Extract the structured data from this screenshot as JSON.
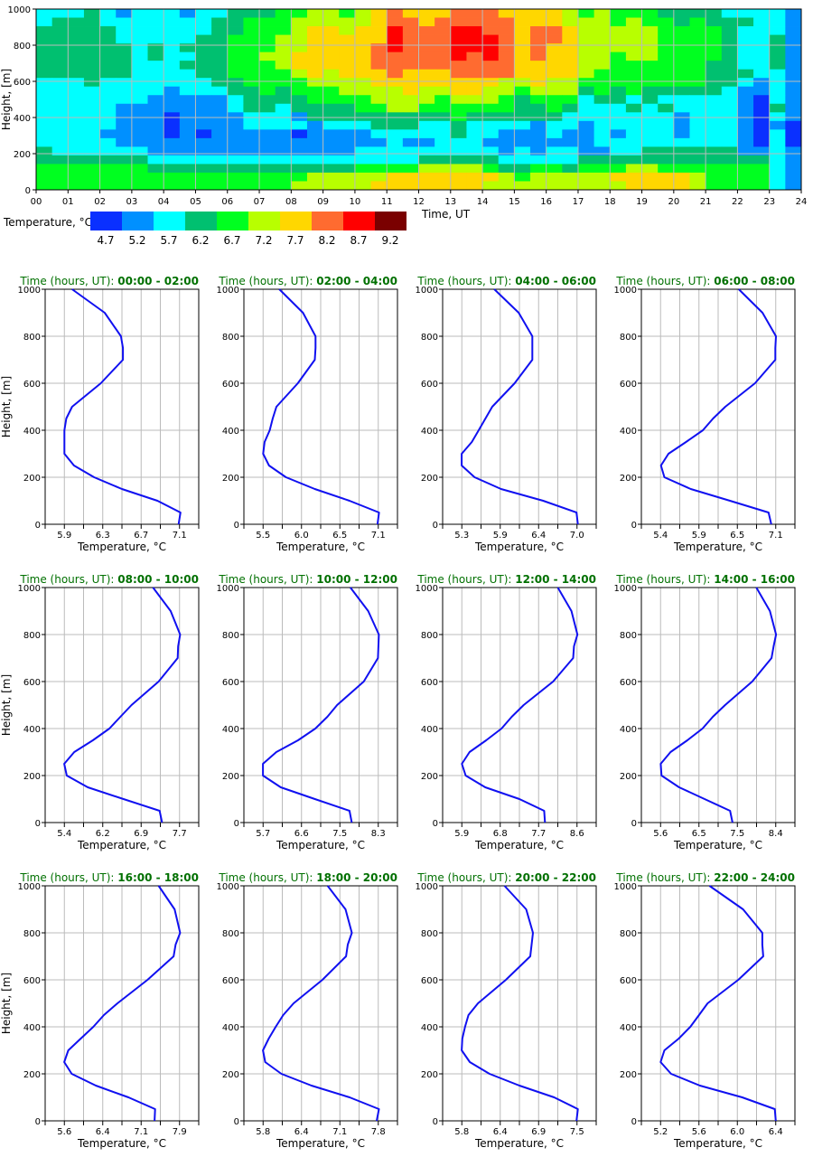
{
  "chart_data": [
    {
      "type": "heatmap",
      "xlabel": "Time, UT",
      "ylabel": "Height, [m]",
      "xlim": [
        0,
        24
      ],
      "ylim": [
        0,
        1000
      ],
      "yticks": [
        "0",
        "200",
        "400",
        "600",
        "800",
        "1000"
      ],
      "xtick_labels": [
        "00",
        "01",
        "02",
        "03",
        "04",
        "05",
        "06",
        "07",
        "08",
        "09",
        "10",
        "11",
        "12",
        "13",
        "14",
        "15",
        "16",
        "17",
        "18",
        "19",
        "20",
        "21",
        "22",
        "23",
        "24"
      ],
      "grid": true,
      "legend": {
        "title": "Temperature, °C",
        "levels": [
          "4.7",
          "5.2",
          "5.7",
          "6.2",
          "6.7",
          "7.2",
          "7.7",
          "8.2",
          "8.7",
          "9.2"
        ],
        "colors": [
          "#0a30ff",
          "#0090ff",
          "#00ffff",
          "#00c070",
          "#00ff20",
          "#b8ff00",
          "#ffd700",
          "#ff6b30",
          "#ff0000",
          "#7a0000"
        ],
        "placement": "bottom-left"
      },
      "rows_top_to_bottom_level_index_per_half_hour": [
        "222321222122333445545676667776666545444333322221",
        "233322222223344455555677677777666555454434333221",
        "333332222223344456656687778877677655555444432221",
        "333332222233444556666687778887677655555444432231",
        "333333232333444556666787778887676655555444432231",
        "333333232233445566666777778787676655455444432231",
        "333333222333444566666777777777666655444444332231",
        "333333222233444456566676667777666654444444333221",
        "222322222223344445555666666665565544444444332121",
        "222222221222334344455556556655455534343333321121",
        "222222211111233334444555545554344423323222221021",
        "222221111111233233334455444444334322232322221031",
        "222221110111122213333333334333333222222212221021",
        "222221110111122221222333223222212212222212221010",
        "222211110101111101111222223221112112122212221020",
        "222221111111111111111121122211111112222222221020",
        "322222211111111111112222222221212211223333331121",
        "333333322222222222222222333332222233333333333321",
        "444444433333333333334444555543344344455444444421",
        "444444444444444445555566666665455555666665444421",
        "444444444444444455555666666655555555566665444421"
      ]
    },
    {
      "type": "line",
      "title_prefix": "Time (hours, UT): ",
      "xlabel": "Temperature, °C",
      "ylabel": "Height, [m]",
      "ylim": [
        0,
        1000
      ],
      "yticks": [
        "0",
        "200",
        "400",
        "600",
        "800",
        "1000"
      ],
      "heights": [
        0,
        50,
        100,
        150,
        200,
        250,
        300,
        350,
        400,
        450,
        500,
        600,
        700,
        750,
        800,
        900,
        1000
      ],
      "line_color": "#1010f0",
      "panels": [
        {
          "range": "00:00 - 02:00",
          "xlim": [
            5.7,
            7.3
          ],
          "xtick_labels": [
            "5.9",
            "6.3",
            "6.7",
            "7.1"
          ],
          "temps": [
            7.09,
            7.11,
            6.87,
            6.5,
            6.21,
            6.0,
            5.9,
            5.9,
            5.9,
            5.92,
            5.98,
            6.28,
            6.51,
            6.51,
            6.49,
            6.32,
            5.98
          ]
        },
        {
          "range": "02:00 - 04:00",
          "xlim": [
            5.24,
            7.32
          ],
          "xtick_labels": [
            "5.5",
            "6.0",
            "6.5",
            "7.1"
          ],
          "temps": [
            7.05,
            7.07,
            6.67,
            6.2,
            5.81,
            5.58,
            5.5,
            5.52,
            5.59,
            5.63,
            5.68,
            5.97,
            6.2,
            6.21,
            6.21,
            6.04,
            5.72
          ]
        },
        {
          "range": "04:00 - 06:00",
          "xlim": [
            5.02,
            7.28
          ],
          "xtick_labels": [
            "5.3",
            "5.9",
            "6.4",
            "7.0"
          ],
          "temps": [
            7.01,
            6.99,
            6.5,
            5.88,
            5.49,
            5.3,
            5.3,
            5.45,
            5.55,
            5.65,
            5.75,
            6.08,
            6.34,
            6.34,
            6.34,
            6.14,
            5.78
          ]
        },
        {
          "range": "06:00 - 08:00",
          "xlim": [
            5.12,
            7.39
          ],
          "xtick_labels": [
            "5.4",
            "5.9",
            "6.5",
            "7.1"
          ],
          "temps": [
            7.04,
            7.0,
            6.43,
            5.85,
            5.46,
            5.41,
            5.52,
            5.78,
            6.03,
            6.18,
            6.36,
            6.8,
            7.1,
            7.1,
            7.11,
            6.91,
            6.56
          ]
        },
        {
          "range": "08:00 - 10:00",
          "xlim": [
            5.02,
            8.08
          ],
          "xtick_labels": [
            "5.4",
            "6.2",
            "6.9",
            "7.7"
          ],
          "temps": [
            7.35,
            7.3,
            6.58,
            5.87,
            5.45,
            5.4,
            5.6,
            5.97,
            6.3,
            6.52,
            6.74,
            7.28,
            7.66,
            7.67,
            7.71,
            7.52,
            7.17
          ]
        },
        {
          "range": "10:00 - 12:00",
          "xlim": [
            5.27,
            8.73
          ],
          "xtick_labels": [
            "5.7",
            "6.6",
            "7.5",
            "8.3"
          ],
          "temps": [
            7.7,
            7.65,
            6.87,
            6.1,
            5.7,
            5.7,
            6.0,
            6.49,
            6.88,
            7.15,
            7.37,
            7.97,
            8.29,
            8.3,
            8.31,
            8.07,
            7.67
          ]
        },
        {
          "range": "12:00 - 14:00",
          "xlim": [
            5.45,
            9.05
          ],
          "xtick_labels": [
            "5.9",
            "6.8",
            "7.7",
            "8.6"
          ],
          "temps": [
            7.85,
            7.83,
            7.25,
            6.45,
            5.99,
            5.9,
            6.08,
            6.47,
            6.83,
            7.07,
            7.35,
            8.04,
            8.51,
            8.53,
            8.61,
            8.47,
            8.15
          ]
        },
        {
          "range": "14:00 - 16:00",
          "xlim": [
            5.13,
            8.87
          ],
          "xtick_labels": [
            "5.6",
            "6.5",
            "7.5",
            "8.4"
          ],
          "temps": [
            7.35,
            7.29,
            6.67,
            6.05,
            5.62,
            5.6,
            5.84,
            6.25,
            6.62,
            6.87,
            7.17,
            7.83,
            8.3,
            8.35,
            8.41,
            8.26,
            7.93
          ]
        },
        {
          "range": "16:00 - 18:00",
          "xlim": [
            5.22,
            8.28
          ],
          "xtick_labels": [
            "5.6",
            "6.4",
            "7.1",
            "7.9"
          ],
          "temps": [
            7.4,
            7.41,
            6.88,
            6.23,
            5.75,
            5.6,
            5.68,
            5.93,
            6.18,
            6.39,
            6.66,
            7.26,
            7.78,
            7.82,
            7.91,
            7.8,
            7.48
          ]
        },
        {
          "range": "18:00 - 20:00",
          "xlim": [
            5.47,
            8.13
          ],
          "xtick_labels": [
            "5.8",
            "6.4",
            "7.1",
            "7.8"
          ],
          "temps": [
            7.77,
            7.81,
            7.3,
            6.64,
            6.12,
            5.84,
            5.8,
            5.9,
            6.02,
            6.15,
            6.33,
            6.83,
            7.24,
            7.27,
            7.34,
            7.23,
            6.92
          ]
        },
        {
          "range": "20:00 - 22:00",
          "xlim": [
            5.52,
            7.78
          ],
          "xtick_labels": [
            "5.8",
            "6.4",
            "6.9",
            "7.5"
          ],
          "temps": [
            7.49,
            7.51,
            7.16,
            6.65,
            6.21,
            5.92,
            5.8,
            5.81,
            5.85,
            5.9,
            6.04,
            6.45,
            6.81,
            6.83,
            6.85,
            6.75,
            6.43
          ]
        },
        {
          "range": "22:00 - 24:00",
          "xlim": [
            5.0,
            6.6
          ],
          "xtick_labels": [
            "5.2",
            "5.6",
            "6.0",
            "6.4"
          ],
          "temps": [
            6.4,
            6.39,
            6.05,
            5.61,
            5.31,
            5.2,
            5.24,
            5.39,
            5.51,
            5.6,
            5.69,
            6.01,
            6.27,
            6.26,
            6.26,
            6.06,
            5.71
          ]
        }
      ]
    }
  ]
}
